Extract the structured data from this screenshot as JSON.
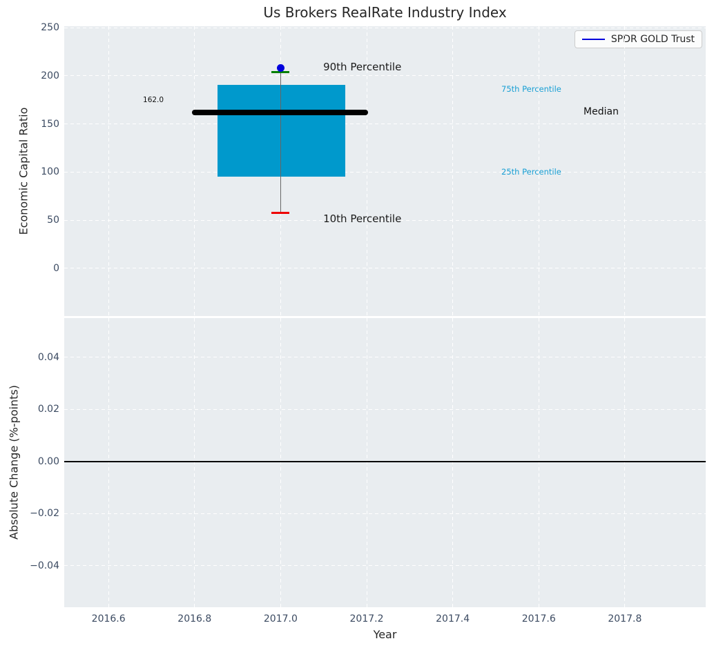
{
  "colors": {
    "figure_background": "#ffffff",
    "axes_background": "#e9edf0",
    "grid": "#ffffff",
    "tick_label": "#3b4a61",
    "text": "#262626"
  },
  "chart_data": [
    {
      "type": "boxplot",
      "title": "Us Brokers RealRate Industry Index",
      "ylabel": "Economic Capital Ratio",
      "xlim": [
        2016.497,
        2017.988
      ],
      "ylim": [
        -49.5,
        251.5
      ],
      "grid": {
        "color": "#ffffff",
        "style": "dashed"
      },
      "xticks": {
        "values": [
          2016.6,
          2016.8,
          2017.0,
          2017.2,
          2017.4,
          2017.6,
          2017.8
        ],
        "labels": []
      },
      "yticks": {
        "values": [
          0,
          50,
          100,
          150,
          200,
          250
        ],
        "labels": [
          "0",
          "50",
          "100",
          "150",
          "200",
          "250"
        ]
      },
      "legend": {
        "label": "SPDR GOLD Trust",
        "line_color": "#0000dd",
        "location": "upper right"
      },
      "box": {
        "x_center": 2017.0,
        "x_left": 2016.853,
        "x_right": 2017.15,
        "p10": 58,
        "p25": 95.5,
        "median": 162.0,
        "p75": 190.5,
        "p90": 203.5,
        "median_x_left": 2016.794,
        "median_x_right": 2017.203,
        "box_color": "#0099cc",
        "median_color": "#000000",
        "whisker_color": "#666666",
        "p90_cap_color": "#008000",
        "p10_cap_color": "#ee0000"
      },
      "series": [
        {
          "name": "SPDR GOLD Trust",
          "x": 2017.0,
          "value": 208.5,
          "marker": "dot",
          "color": "#0000dd"
        }
      ],
      "annotations": [
        {
          "text": "90th Percentile",
          "x": 2017.099,
          "y": 209.0,
          "color": "#1a1a1a",
          "size": 15
        },
        {
          "text": "10th Percentile",
          "x": 2017.099,
          "y": 51.5,
          "color": "#1a1a1a",
          "size": 15
        },
        {
          "text": "75th Percentile",
          "x": 2017.513,
          "y": 186.5,
          "color": "#189fd4",
          "size": 11.5
        },
        {
          "text": "25th Percentile",
          "x": 2017.513,
          "y": 100.5,
          "color": "#189fd4",
          "size": 11.5
        },
        {
          "text": "Median",
          "x": 2017.704,
          "y": 162.5,
          "color": "#111111",
          "size": 14
        },
        {
          "text": "162.0",
          "x": 2016.68,
          "y": 175.0,
          "color": "#111111",
          "size": 10.5
        }
      ]
    },
    {
      "type": "line",
      "xlabel": "Year",
      "ylabel": "Absolute Change (%-points)",
      "xlim": [
        2016.497,
        2017.988
      ],
      "ylim": [
        -0.0559,
        0.0551
      ],
      "grid": {
        "color": "#ffffff",
        "style": "dashed"
      },
      "xticks": {
        "values": [
          2016.6,
          2016.8,
          2017.0,
          2017.2,
          2017.4,
          2017.6,
          2017.8
        ],
        "labels": [
          "2016.6",
          "2016.8",
          "2017.0",
          "2017.2",
          "2017.4",
          "2017.6",
          "2017.8"
        ]
      },
      "yticks": {
        "values": [
          0.04,
          0.02,
          0.0,
          -0.02,
          -0.04
        ],
        "labels": [
          "0.04",
          "0.02",
          "0.00",
          "−0.02",
          "−0.04"
        ]
      },
      "zero_line": {
        "y": 0.0,
        "color": "#000000"
      },
      "series": []
    }
  ]
}
